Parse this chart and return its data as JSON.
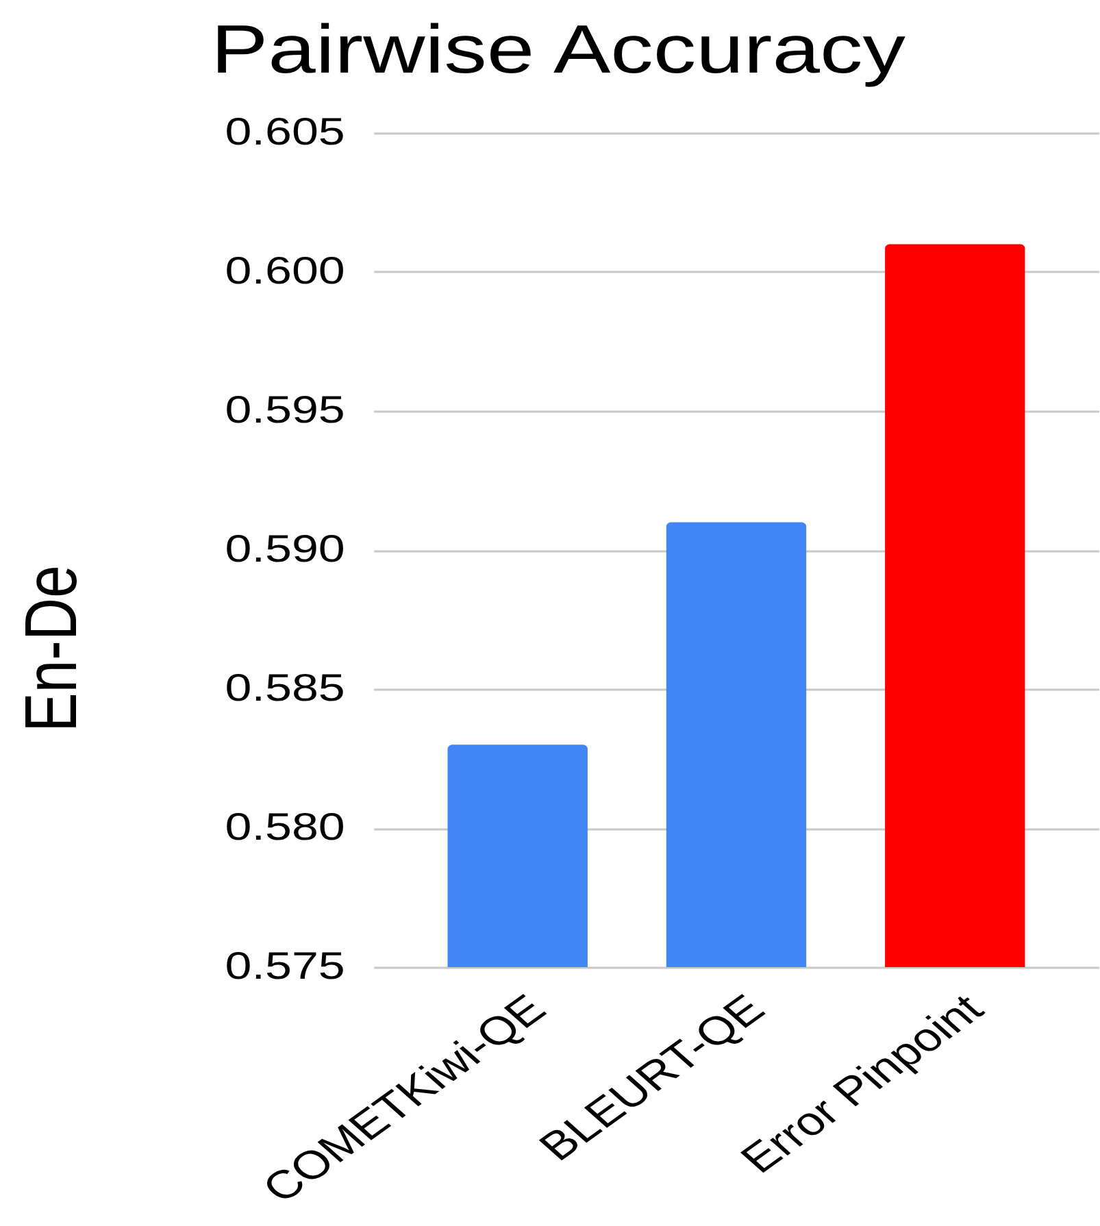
{
  "chart_data": {
    "type": "bar",
    "title": "Pairwise Accuracy",
    "ylabel": "En-De",
    "categories": [
      "COMETKiwi-QE",
      "BLEURT-QE",
      "Error Pinpoint"
    ],
    "values": [
      0.583,
      0.591,
      0.601
    ],
    "colors": [
      "#4285f4",
      "#4285f4",
      "#ff0000"
    ],
    "ylim": [
      0.575,
      0.605
    ],
    "yticks": [
      0.575,
      {
        "value": 0.58,
        "label": "0.580"
      },
      0.585,
      {
        "value": 0.59,
        "label": "0.590"
      },
      0.595,
      {
        "value": 0.6,
        "label": "0.600"
      },
      0.605
    ],
    "grid": "y"
  }
}
